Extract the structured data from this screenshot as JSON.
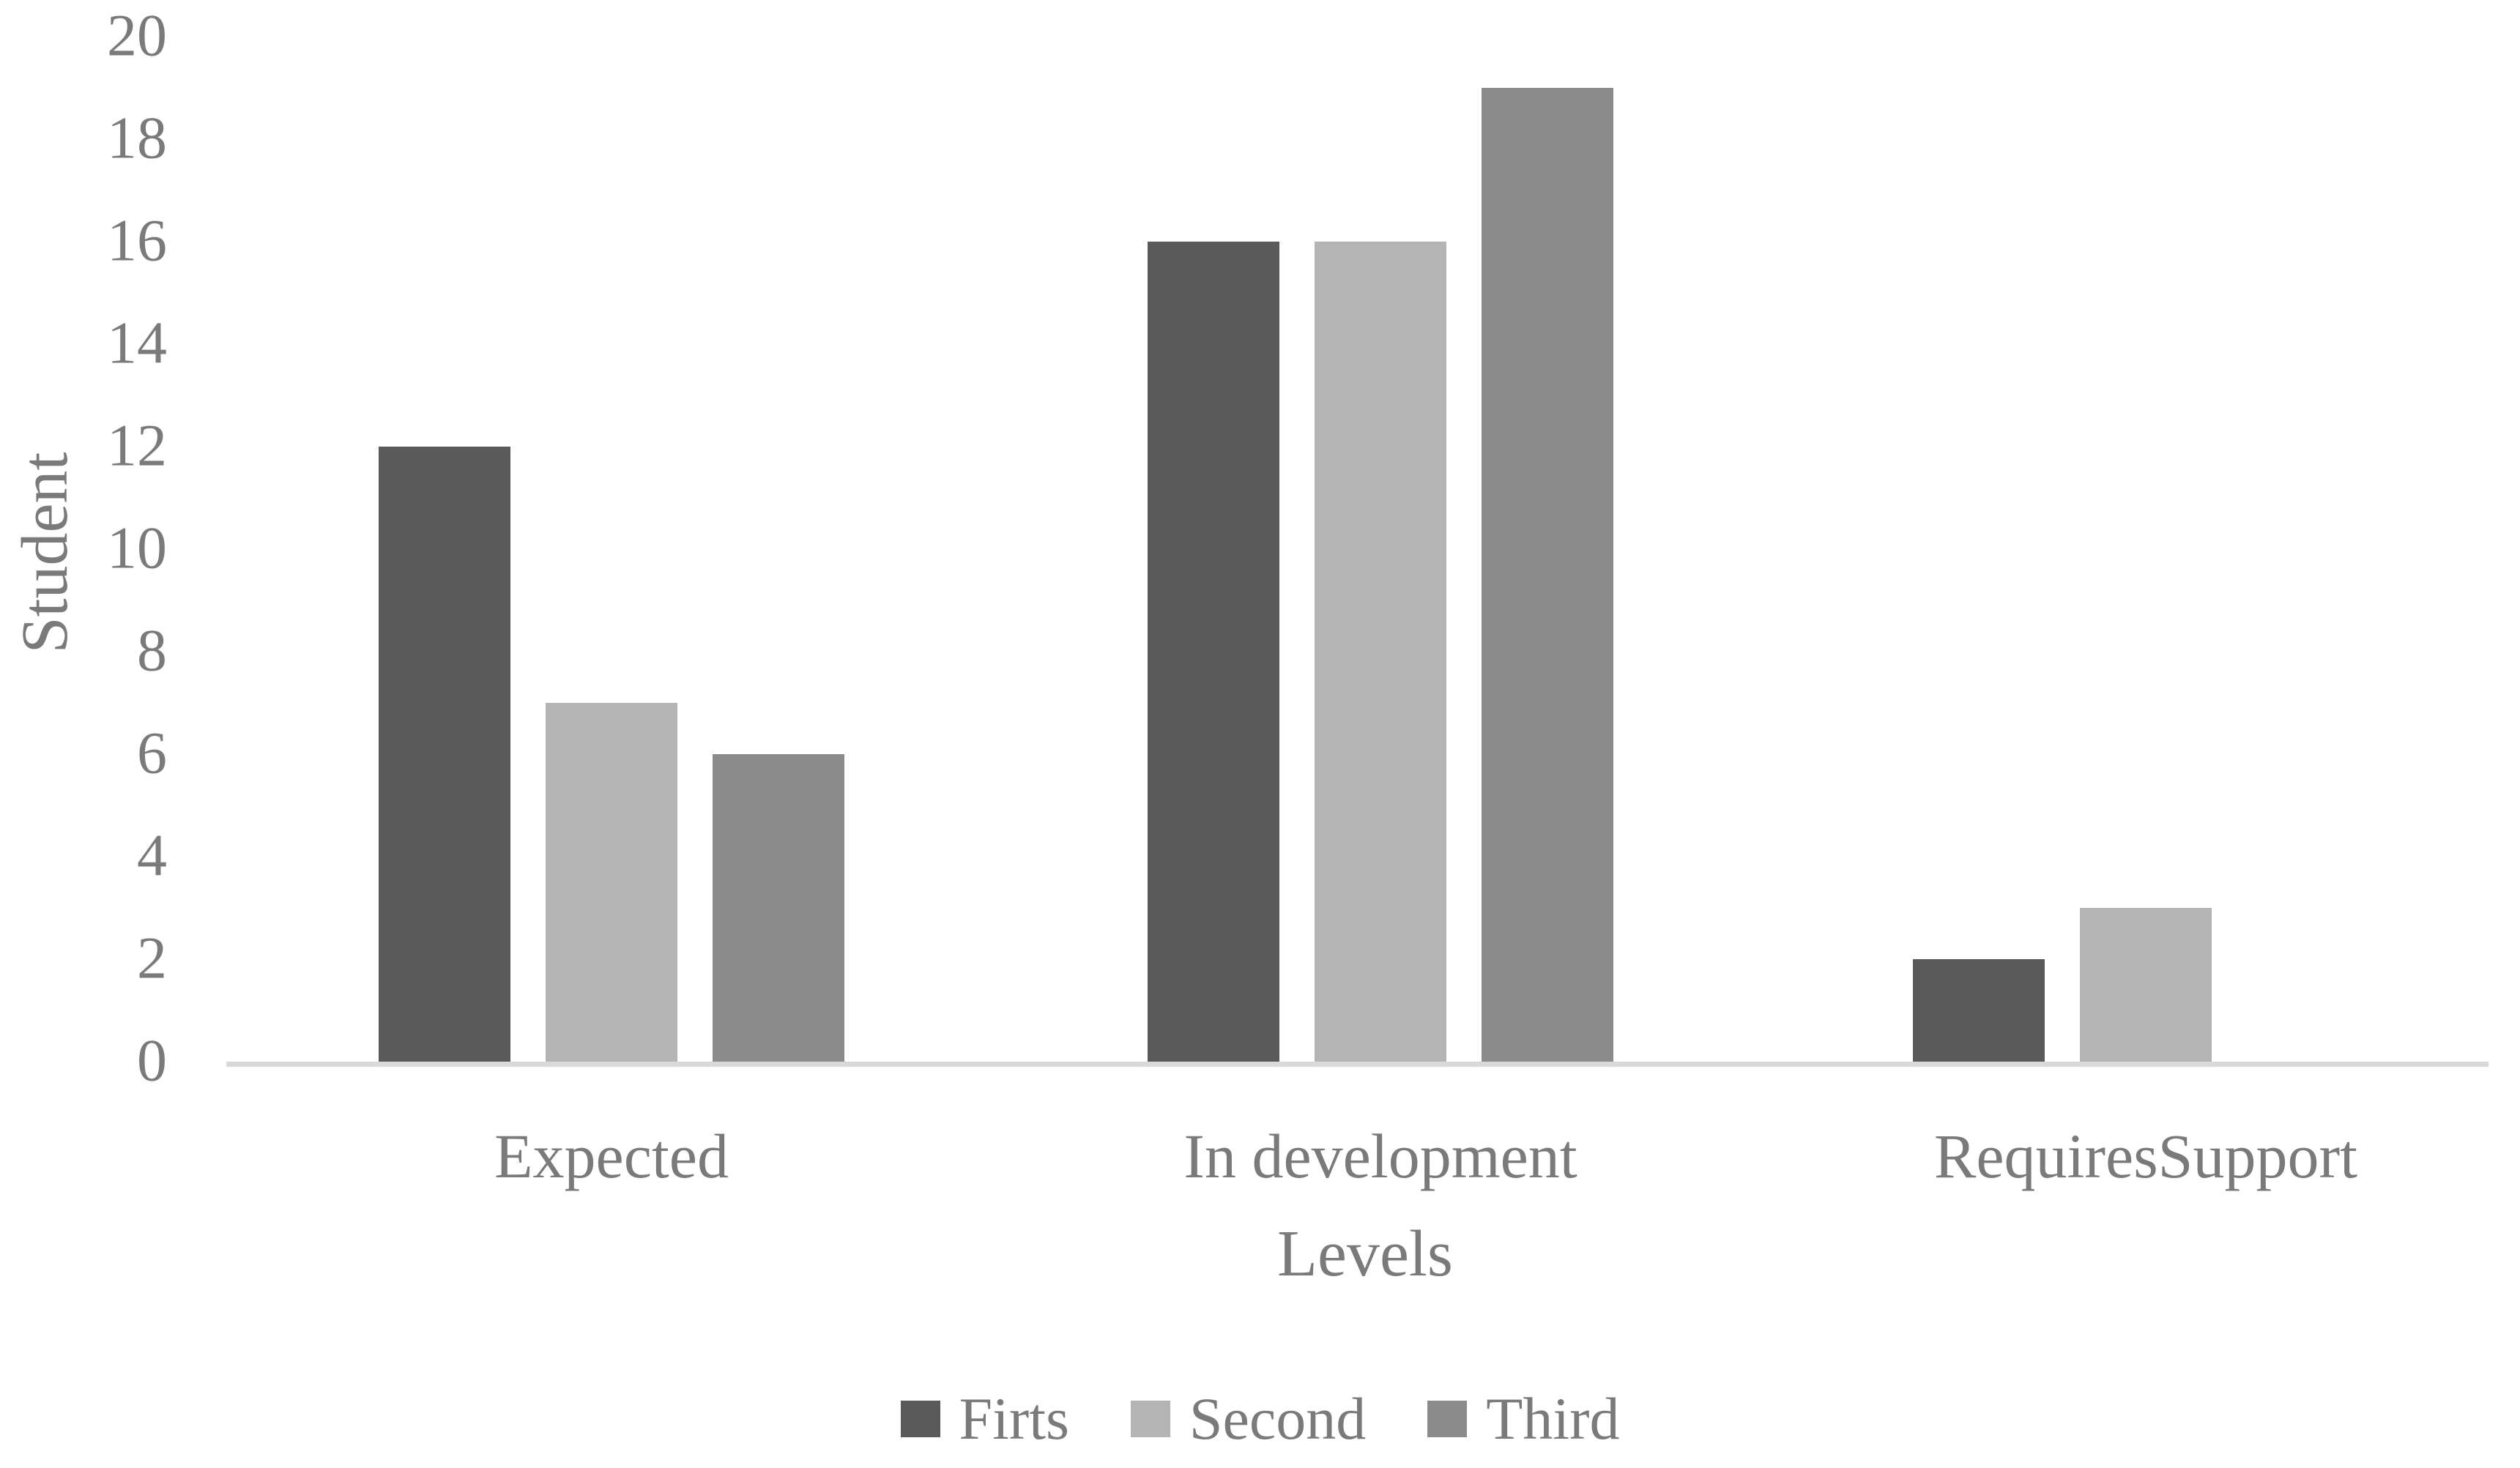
{
  "chart_data": {
    "type": "bar",
    "title": "",
    "categories": [
      "Expected",
      "In development",
      "RequiresSupport"
    ],
    "series": [
      {
        "name": "Firts",
        "color": "#5a5a5a",
        "values": [
          12,
          16,
          2
        ]
      },
      {
        "name": "Second",
        "color": "#b4b4b4",
        "values": [
          7,
          16,
          3
        ]
      },
      {
        "name": "Third",
        "color": "#8b8b8b",
        "values": [
          6,
          19,
          0
        ]
      }
    ],
    "xlabel": "Levels",
    "ylabel": "Student",
    "ylim": [
      0,
      20
    ],
    "ytick_step": 2,
    "yticks": [
      0,
      2,
      4,
      6,
      8,
      10,
      12,
      14,
      16,
      18,
      20
    ],
    "grid": false,
    "legend_position": "bottom",
    "colors": {
      "axis_line": "#d9d9d9",
      "text": "#7a7a7a",
      "background": "#ffffff"
    }
  }
}
